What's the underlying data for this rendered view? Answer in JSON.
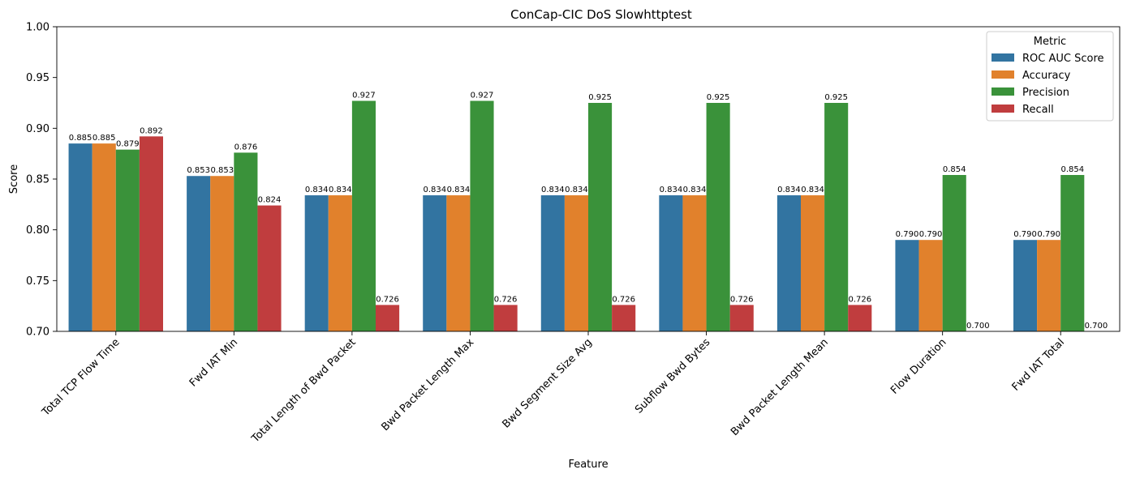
{
  "chart_data": {
    "type": "bar",
    "title": "ConCap-CIC DoS Slowhttptest",
    "xlabel": "Feature",
    "ylabel": "Score",
    "ylim": [
      0.7,
      1.0
    ],
    "yticks": [
      "0.70",
      "0.75",
      "0.80",
      "0.85",
      "0.90",
      "0.95",
      "1.00"
    ],
    "grid": false,
    "legend": {
      "title": "Metric",
      "placement": "top-right"
    },
    "categories": [
      "Total TCP Flow Time",
      "Fwd IAT Min",
      "Total Length of Bwd Packet",
      "Bwd Packet Length Max",
      "Bwd Segment Size Avg",
      "Subflow Bwd Bytes",
      "Bwd Packet Length Mean",
      "Flow Duration",
      "Fwd IAT Total"
    ],
    "series": [
      {
        "name": "ROC AUC Score",
        "color": "#3274a1",
        "values": [
          0.885,
          0.853,
          0.834,
          0.834,
          0.834,
          0.834,
          0.834,
          0.79,
          0.79
        ],
        "labels": [
          "0.885",
          "0.853",
          "0.834",
          "0.834",
          "0.834",
          "0.834",
          "0.834",
          "0.790",
          "0.790"
        ]
      },
      {
        "name": "Accuracy",
        "color": "#e1812c",
        "values": [
          0.885,
          0.853,
          0.834,
          0.834,
          0.834,
          0.834,
          0.834,
          0.79,
          0.79
        ],
        "labels": [
          "0.885",
          "0.853",
          "0.834",
          "0.834",
          "0.834",
          "0.834",
          "0.834",
          "0.790",
          "0.790"
        ]
      },
      {
        "name": "Precision",
        "color": "#3a923a",
        "values": [
          0.879,
          0.876,
          0.927,
          0.927,
          0.925,
          0.925,
          0.925,
          0.854,
          0.854
        ],
        "labels": [
          "0.879",
          "0.876",
          "0.927",
          "0.927",
          "0.925",
          "0.925",
          "0.925",
          "0.854",
          "0.854"
        ]
      },
      {
        "name": "Recall",
        "color": "#c03d3e",
        "values": [
          0.892,
          0.824,
          0.726,
          0.726,
          0.726,
          0.726,
          0.726,
          0.7,
          0.7
        ],
        "labels": [
          "0.892",
          "0.824",
          "0.726",
          "0.726",
          "0.726",
          "0.726",
          "0.726",
          "0.700",
          "0.700"
        ]
      }
    ]
  }
}
